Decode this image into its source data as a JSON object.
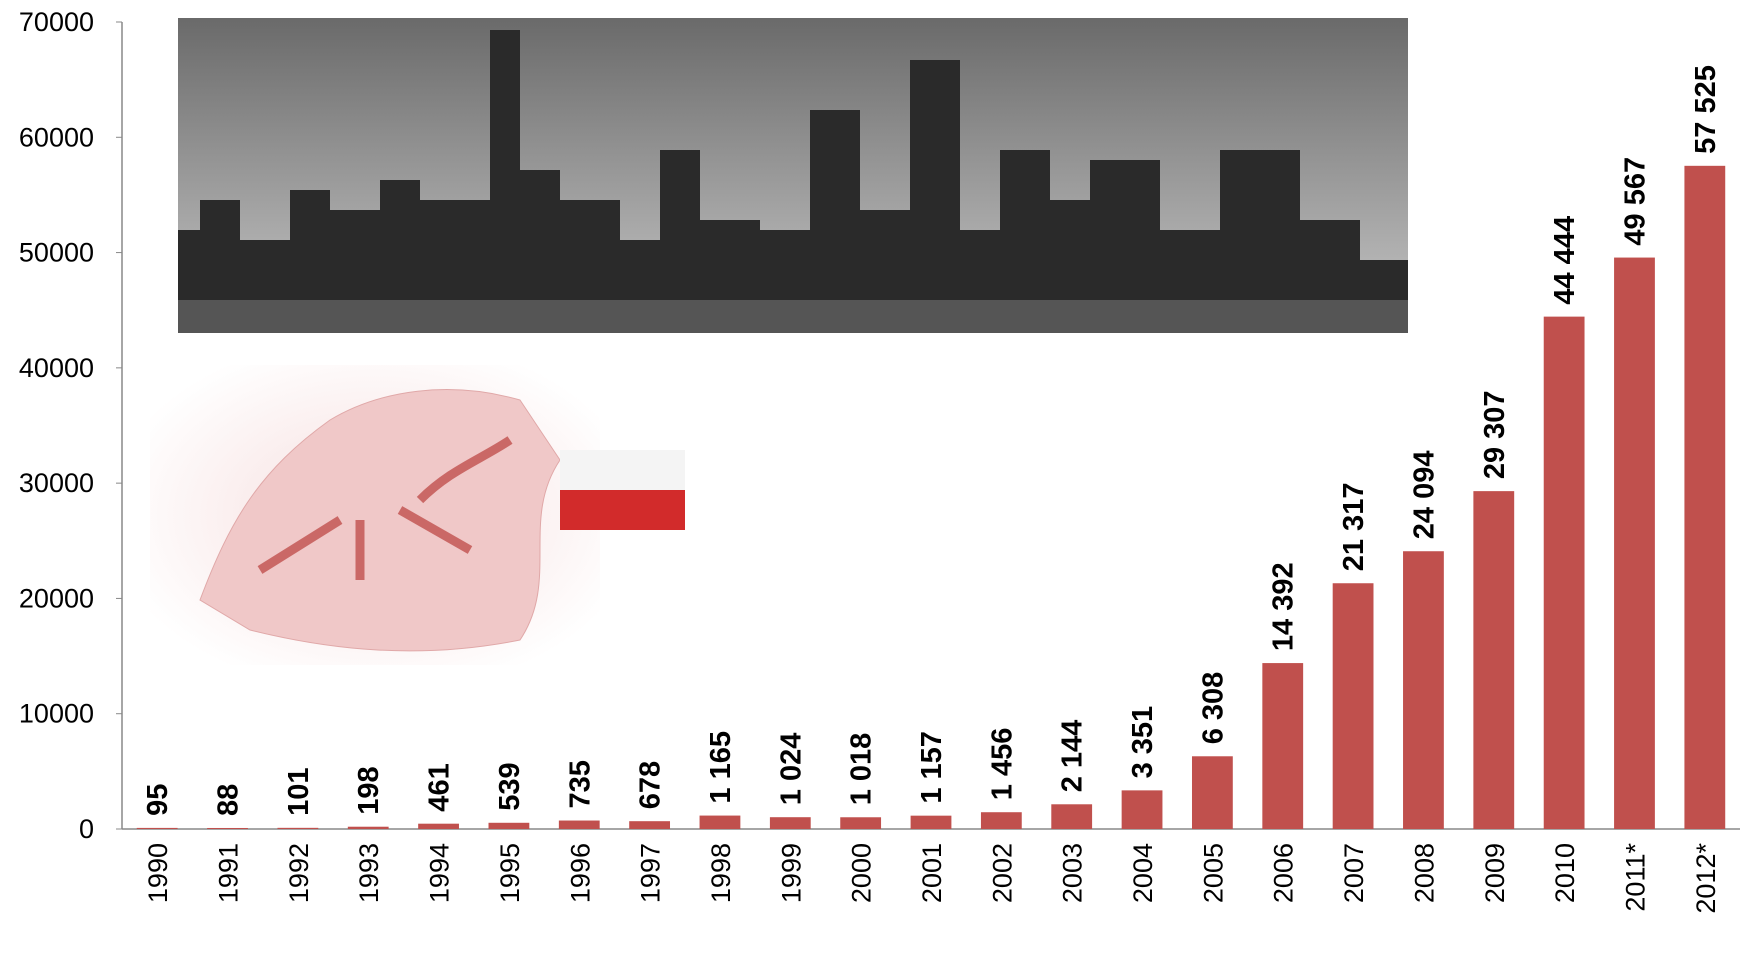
{
  "chart_data": {
    "type": "bar",
    "categories": [
      "1990",
      "1991",
      "1992",
      "1993",
      "1994",
      "1995",
      "1996",
      "1997",
      "1998",
      "1999",
      "2000",
      "2001",
      "2002",
      "2003",
      "2004",
      "2005",
      "2006",
      "2007",
      "2008",
      "2009",
      "2010",
      "2011*",
      "2012*"
    ],
    "values": [
      95,
      88,
      101,
      198,
      461,
      539,
      735,
      678,
      1165,
      1024,
      1018,
      1157,
      1456,
      2144,
      3351,
      6308,
      14392,
      21317,
      24094,
      29307,
      44444,
      49567,
      57525
    ],
    "value_labels": [
      "95",
      "88",
      "101",
      "198",
      "461",
      "539",
      "735",
      "678",
      "1 165",
      "1 024",
      "1 018",
      "1 157",
      "1 456",
      "2 144",
      "3 351",
      "6 308",
      "14 392",
      "21 317",
      "24 094",
      "29 307",
      "44 444",
      "49 567",
      "57 525"
    ],
    "color": "#c0504d",
    "ylim": [
      0,
      70000
    ],
    "yticks": [
      0,
      10000,
      20000,
      30000,
      40000,
      50000,
      60000,
      70000
    ],
    "grid": false
  }
}
